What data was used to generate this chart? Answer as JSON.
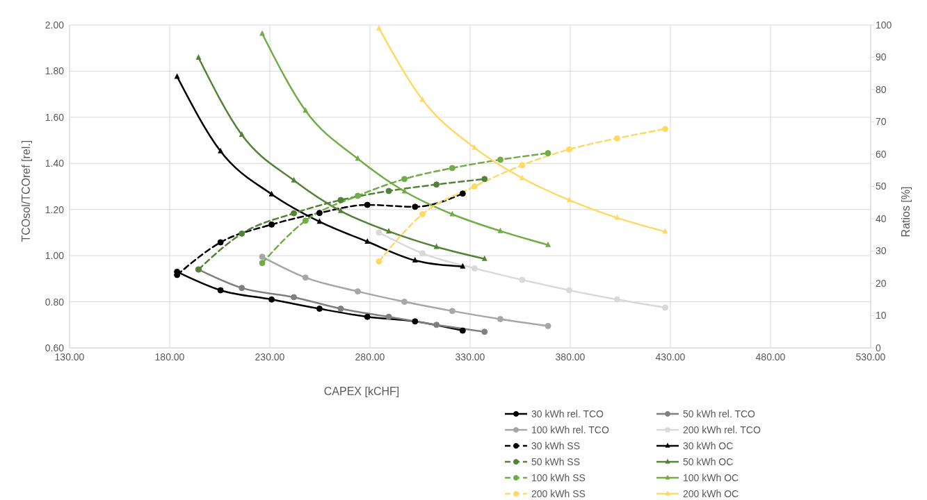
{
  "chart_data": {
    "type": "line",
    "xlabel": "CAPEX [kCHF]",
    "ylabel": "TCOsol/TCOref [rel.]",
    "y2label": "Ratios [%]",
    "xlim": [
      130,
      530
    ],
    "xticks": [
      {
        "value": 130,
        "label": "130.00"
      },
      {
        "value": 180,
        "label": "180.00"
      },
      {
        "value": 230,
        "label": "230.00"
      },
      {
        "value": 280,
        "label": "280.00"
      },
      {
        "value": 330,
        "label": "330.00"
      },
      {
        "value": 380,
        "label": "380.00"
      },
      {
        "value": 430,
        "label": "430.00"
      },
      {
        "value": 480,
        "label": "480.00"
      },
      {
        "value": 530,
        "label": "530.00"
      }
    ],
    "ylim": [
      0.6,
      2.0
    ],
    "yticks": [
      {
        "value": 0.6,
        "label": "0.60"
      },
      {
        "value": 0.8,
        "label": "0.80"
      },
      {
        "value": 1.0,
        "label": "1.00"
      },
      {
        "value": 1.2,
        "label": "1.20"
      },
      {
        "value": 1.4,
        "label": "1.40"
      },
      {
        "value": 1.6,
        "label": "1.60"
      },
      {
        "value": 1.8,
        "label": "1.80"
      },
      {
        "value": 2.0,
        "label": "2.00"
      }
    ],
    "y2lim": [
      0,
      100
    ],
    "y2ticks": [
      0,
      10,
      20,
      30,
      40,
      50,
      60,
      70,
      80,
      90,
      100
    ],
    "grid": true,
    "legend": "bottom",
    "series": [
      {
        "name": "30 kWh rel. TCO",
        "color": "#000000",
        "marker": "circle",
        "line_style": "solid",
        "x": [
          183.7,
          205.4,
          230.9,
          254.8,
          278.7,
          302.5,
          326.3
        ],
        "values": [
          0.93,
          0.85,
          0.81,
          0.77,
          0.735,
          0.715,
          0.675
        ]
      },
      {
        "name": "50 kWh rel. TCO",
        "color": "#7f7f7f",
        "marker": "circle",
        "line_style": "solid",
        "x": [
          194.4,
          216.0,
          242.0,
          265.4,
          289.4,
          313.2,
          337.2
        ],
        "values": [
          0.94,
          0.86,
          0.82,
          0.77,
          0.735,
          0.7,
          0.67
        ]
      },
      {
        "name": "100 kWh rel. TCO",
        "color": "#a6a6a6",
        "marker": "circle",
        "line_style": "solid",
        "x": [
          226.2,
          247.8,
          273.9,
          297.2,
          321.1,
          345.1,
          368.9
        ],
        "values": [
          0.995,
          0.905,
          0.845,
          0.8,
          0.76,
          0.725,
          0.695
        ]
      },
      {
        "name": "200 kWh rel. TCO",
        "color": "#d9d9d9",
        "marker": "circle",
        "line_style": "solid",
        "x": [
          284.5,
          306.2,
          332.2,
          356.0,
          379.5,
          403.4,
          427.4
        ],
        "values": [
          1.1,
          1.01,
          0.945,
          0.895,
          0.85,
          0.81,
          0.775
        ]
      },
      {
        "name": "30 kWh SS",
        "color": "#000000",
        "marker": "circle",
        "line_style": "dashed",
        "axis": "y2",
        "x": [
          183.7,
          205.4,
          230.9,
          254.8,
          278.7,
          302.5,
          326.3
        ],
        "values": [
          22.6,
          32.7,
          38.2,
          41.8,
          44.3,
          43.7,
          47.8
        ]
      },
      {
        "name": "30 kWh OC",
        "color": "#000000",
        "marker": "triangle",
        "line_style": "solid",
        "axis": "y2",
        "x": [
          183.7,
          205.4,
          230.9,
          254.8,
          278.7,
          302.5,
          326.3
        ],
        "values": [
          84,
          60.9,
          47.6,
          39.1,
          32.9,
          27.1,
          25.2
        ]
      },
      {
        "name": "50 kWh SS",
        "color": "#548235",
        "marker": "circle",
        "line_style": "dashed",
        "axis": "y2",
        "x": [
          194.4,
          216.0,
          242.0,
          265.4,
          289.4,
          313.2,
          337.2
        ],
        "values": [
          24.3,
          35.4,
          41.7,
          45.8,
          48.6,
          50.6,
          52.3
        ]
      },
      {
        "name": "50 kWh OC",
        "color": "#548235",
        "marker": "triangle",
        "line_style": "solid",
        "axis": "y2",
        "x": [
          194.4,
          216.0,
          242.0,
          265.4,
          289.4,
          313.2,
          337.2
        ],
        "values": [
          89.9,
          66.0,
          51.9,
          42.4,
          36.1,
          31.3,
          27.6
        ]
      },
      {
        "name": "100 kWh SS",
        "color": "#70ad47",
        "marker": "circle",
        "line_style": "dashed",
        "axis": "y2",
        "x": [
          226.2,
          247.8,
          273.9,
          297.2,
          321.1,
          345.1,
          368.9
        ],
        "values": [
          26.3,
          39.4,
          47.1,
          52.3,
          55.7,
          58.3,
          60.3
        ]
      },
      {
        "name": "100 kWh OC",
        "color": "#70ad47",
        "marker": "triangle",
        "line_style": "solid",
        "axis": "y2",
        "x": [
          226.2,
          247.8,
          273.9,
          297.2,
          321.1,
          345.1,
          368.9
        ],
        "values": [
          97.3,
          73.5,
          58.6,
          48.5,
          41.4,
          36.2,
          31.9
        ]
      },
      {
        "name": "200 kWh SS",
        "color": "#ffd966",
        "marker": "circle",
        "line_style": "dashed",
        "axis": "y2",
        "x": [
          284.5,
          306.2,
          332.2,
          356.0,
          379.5,
          403.4,
          427.4
        ],
        "values": [
          26.8,
          41.4,
          50.0,
          56.6,
          61.5,
          64.9,
          67.8
        ]
      },
      {
        "name": "200 kWh OC",
        "color": "#ffd966",
        "marker": "triangle",
        "line_style": "solid",
        "axis": "y2",
        "x": [
          284.5,
          306.2,
          332.2,
          356.0,
          379.5,
          403.4,
          427.4
        ],
        "values": [
          99.0,
          76.9,
          62.0,
          52.6,
          45.8,
          40.3,
          36.0
        ]
      }
    ]
  }
}
